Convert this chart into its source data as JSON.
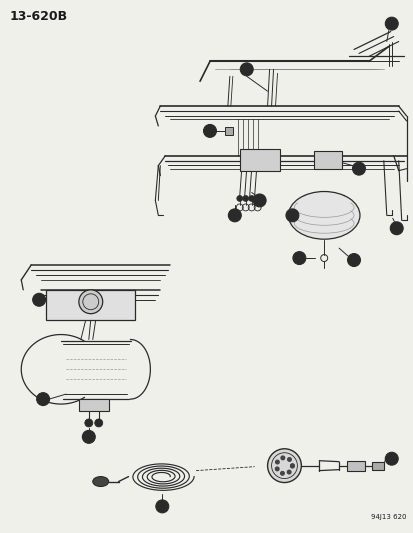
{
  "title": "13-620B",
  "subtitle": "94J13 620",
  "bg": "#f5f5f0",
  "lc": "#2a2a2a",
  "tc": "#1a1a1a",
  "fig_width": 4.14,
  "fig_height": 5.33,
  "dpi": 100
}
